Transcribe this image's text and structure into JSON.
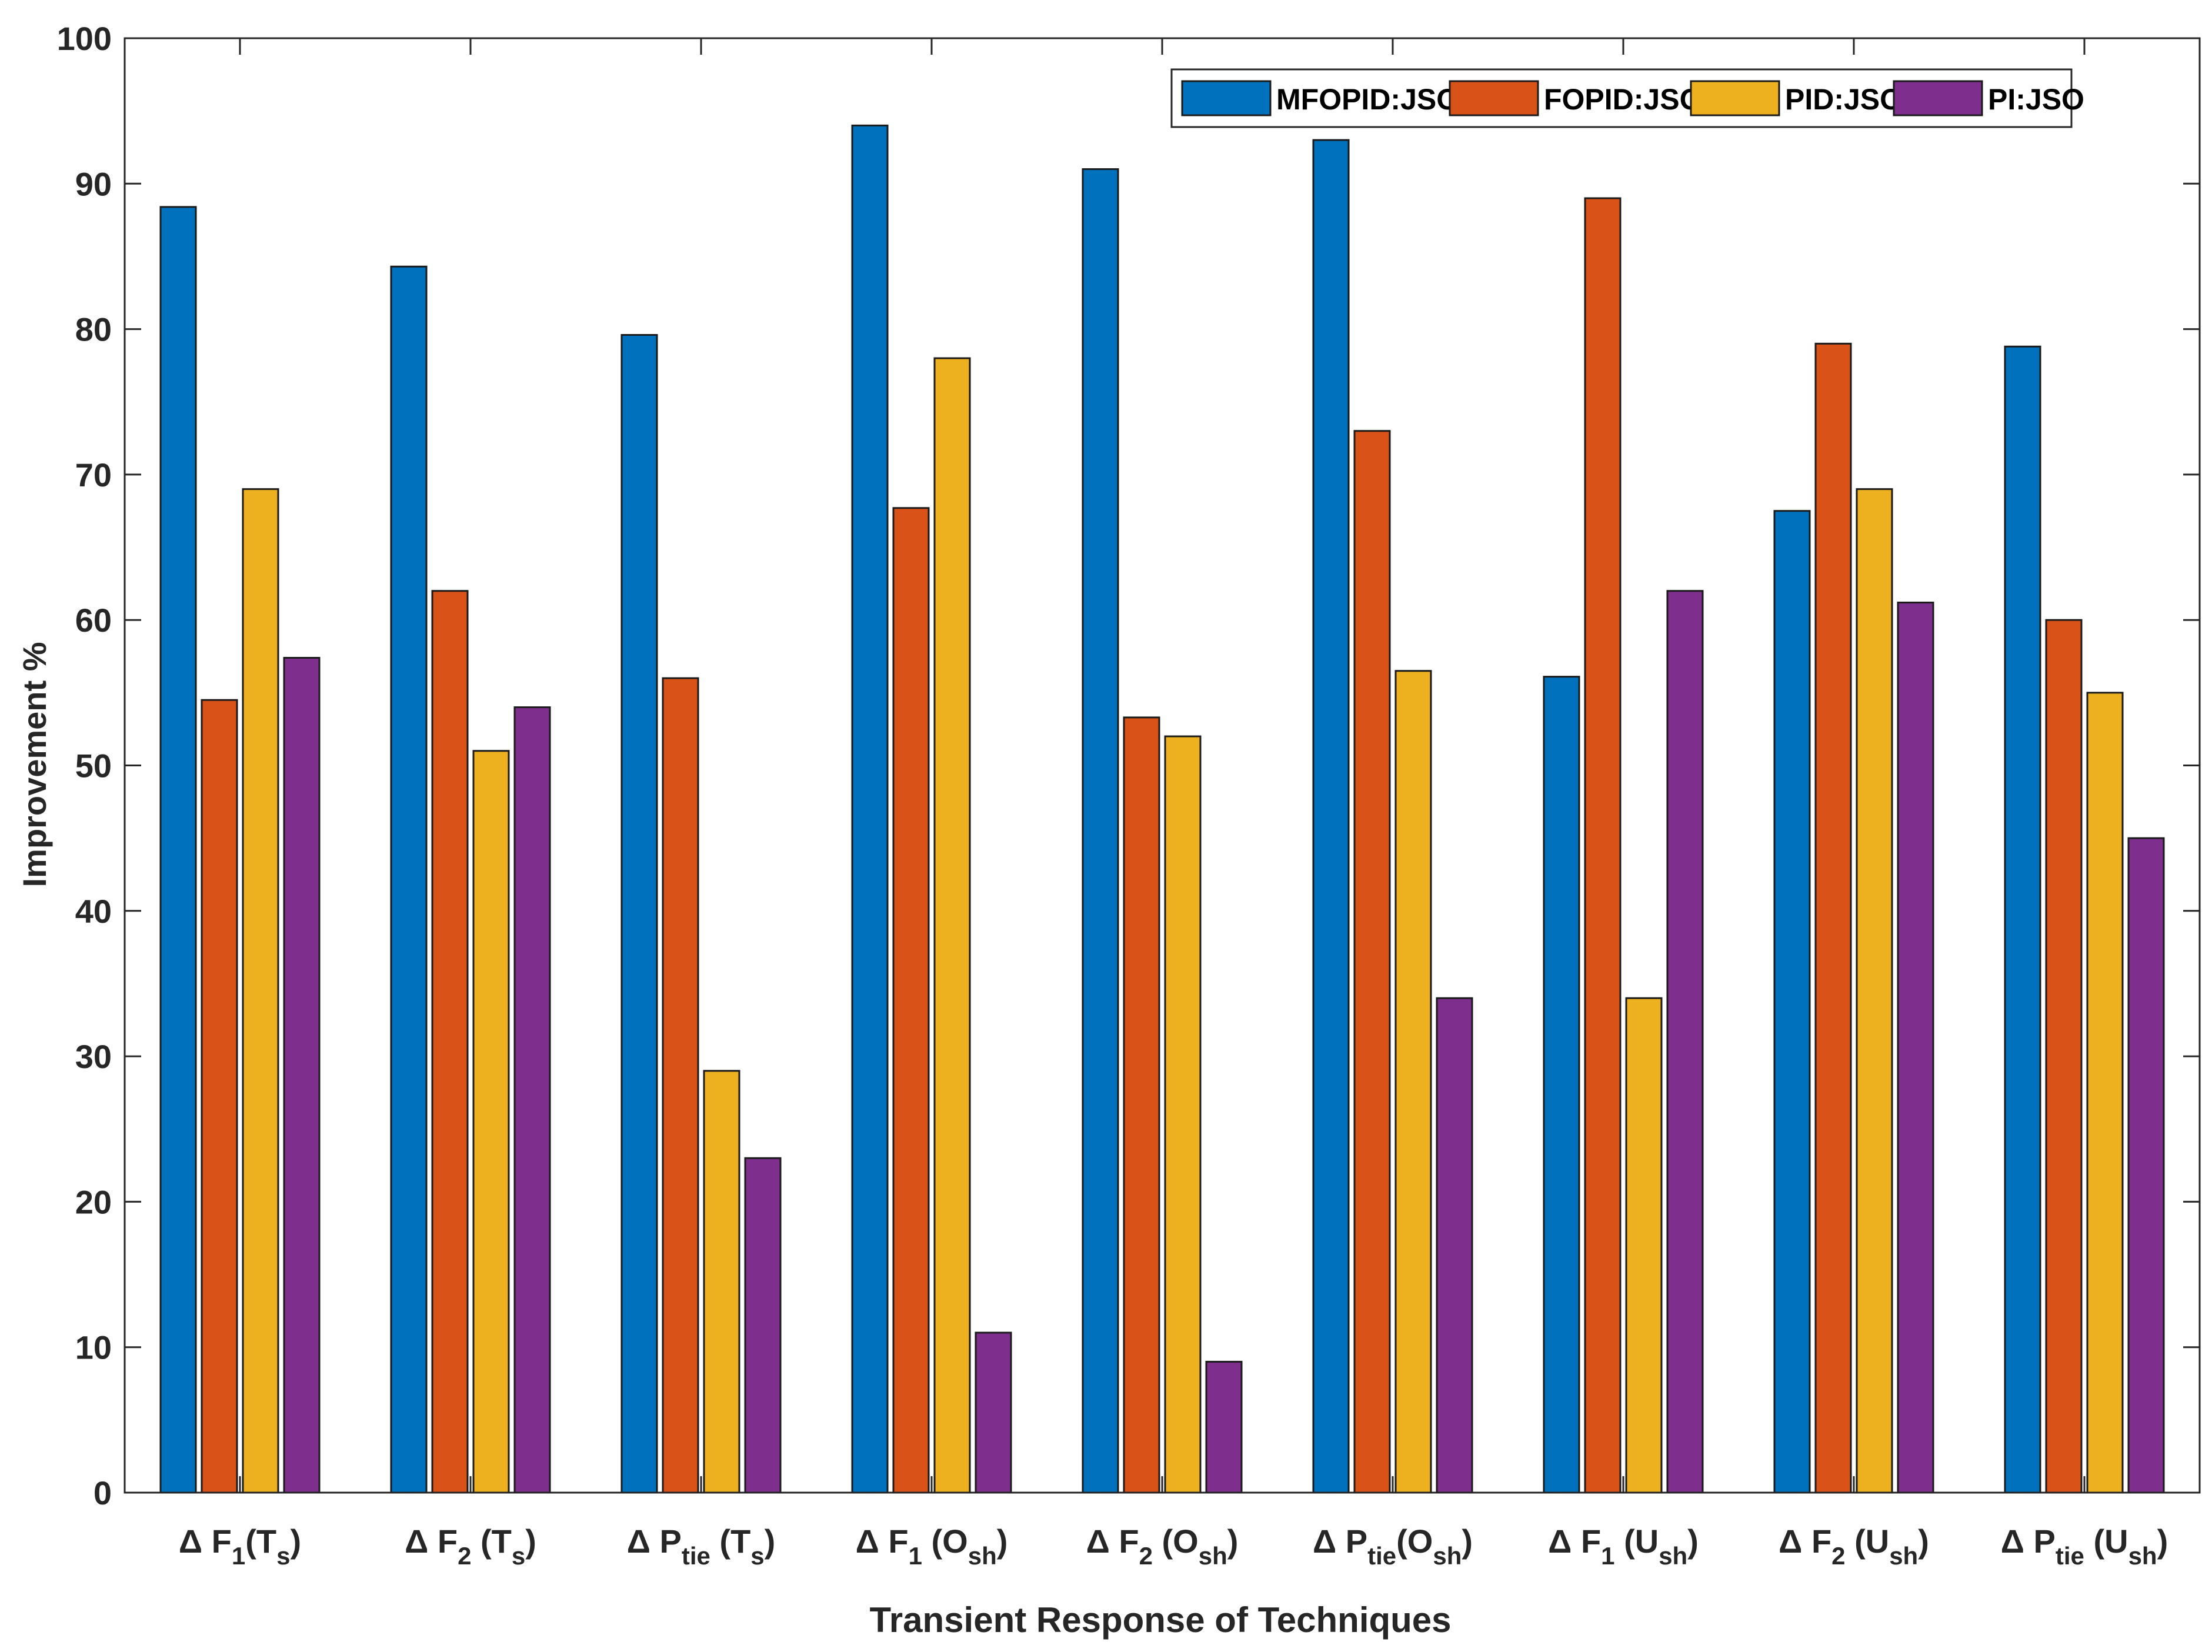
{
  "chart_data": {
    "type": "bar",
    "title": "",
    "xlabel": "Transient Response of Techniques",
    "ylabel": "Improvement %",
    "ylim": [
      0,
      100
    ],
    "yticks": [
      0,
      10,
      20,
      30,
      40,
      50,
      60,
      70,
      80,
      90,
      100
    ],
    "grid": false,
    "legend_position": "top-right",
    "categories": [
      {
        "delta": "Δ",
        "var": "F",
        "sub1": "1",
        "mid": "(T",
        "sub2": "s",
        "close": ")"
      },
      {
        "delta": "Δ",
        "var": "F",
        "sub1": "2",
        "mid": " (T",
        "sub2": "s",
        "close": ")"
      },
      {
        "delta": "Δ",
        "var": "P",
        "sub1": "tie",
        "mid": " (T",
        "sub2": "s",
        "close": ")"
      },
      {
        "delta": "Δ",
        "var": "F",
        "sub1": "1",
        "mid": " (O",
        "sub2": "sh",
        "close": ")"
      },
      {
        "delta": "Δ",
        "var": "F",
        "sub1": "2",
        "mid": " (O",
        "sub2": "sh",
        "close": ")"
      },
      {
        "delta": "Δ",
        "var": "P",
        "sub1": "tie",
        "mid": "(O",
        "sub2": "sh",
        "close": ")"
      },
      {
        "delta": "Δ",
        "var": "F",
        "sub1": "1",
        "mid": " (U",
        "sub2": "sh",
        "close": ")"
      },
      {
        "delta": "Δ",
        "var": "F",
        "sub1": "2",
        "mid": " (U",
        "sub2": "sh",
        "close": ")"
      },
      {
        "delta": "Δ",
        "var": "P",
        "sub1": "tie",
        "mid": " (U",
        "sub2": "sh",
        "close": ")"
      }
    ],
    "series": [
      {
        "name": "MFOPID:JSO",
        "color": "#0072BD",
        "values": [
          88.4,
          84.3,
          79.6,
          94.0,
          91.0,
          93.0,
          56.1,
          67.5,
          78.8
        ]
      },
      {
        "name": "FOPID:JSO",
        "color": "#D95319",
        "values": [
          54.5,
          62.0,
          56.0,
          67.7,
          53.3,
          73.0,
          89.0,
          79.0,
          60.0
        ]
      },
      {
        "name": "PID:JSO",
        "color": "#EDB120",
        "values": [
          69.0,
          51.0,
          29.0,
          78.0,
          52.0,
          56.5,
          34.0,
          69.0,
          55.0
        ]
      },
      {
        "name": "PI:JSO",
        "color": "#7E2F8E",
        "values": [
          57.4,
          54.0,
          23.0,
          11.0,
          9.0,
          34.0,
          62.0,
          61.2,
          45.0
        ]
      }
    ]
  }
}
